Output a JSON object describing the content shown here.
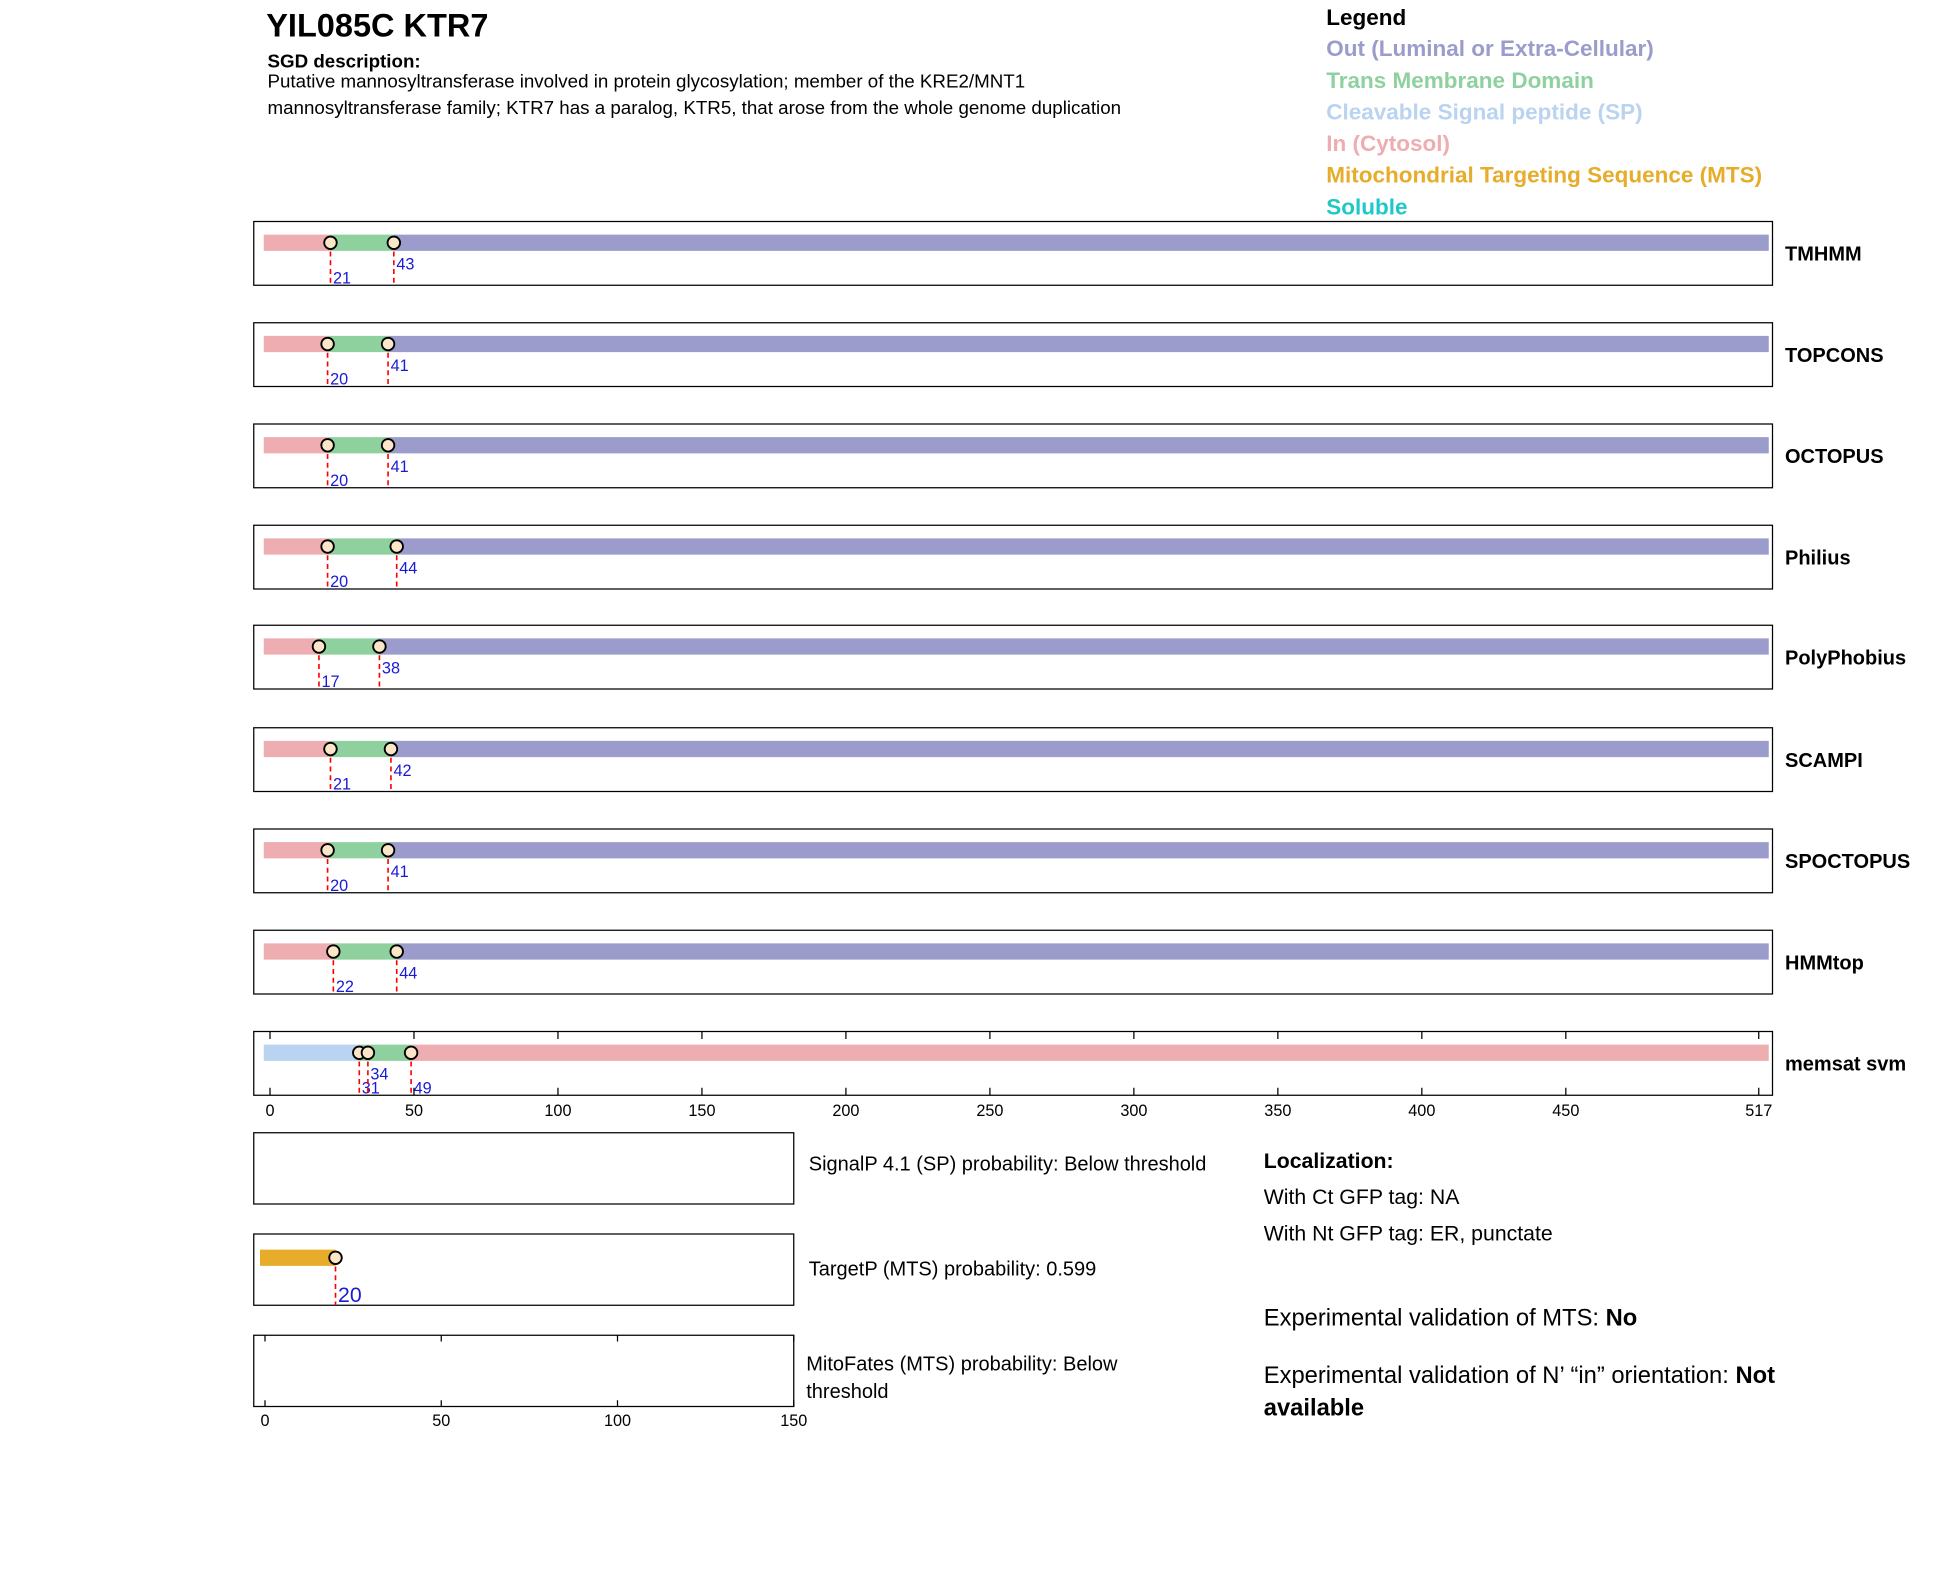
{
  "header": {
    "title": "YIL085C  KTR7",
    "description_label": "SGD description:",
    "description_lines": [
      "Putative mannosyltransferase involved in protein glycosylation; member of the KRE2/MNT1",
      "mannosyltransferase family; KTR7 has a paralog, KTR5, that arose from the whole genome duplication"
    ]
  },
  "legend": {
    "title": "Legend",
    "items": [
      {
        "label": "Out (Luminal or Extra-Cellular)",
        "color": "#9b9bcc"
      },
      {
        "label": "Trans Membrane Domain",
        "color": "#8fd19e"
      },
      {
        "label": "Cleavable Signal peptide (SP)",
        "color": "#b9d3f0"
      },
      {
        "label": "In (Cytosol)",
        "color": "#eeadb0"
      },
      {
        "label": "Mitochondrial Targeting Sequence (MTS)",
        "color": "#e6ac2a"
      },
      {
        "label": "Soluble",
        "color": "#1fc8c8"
      }
    ]
  },
  "chart_data": {
    "type": "topology",
    "xlim": [
      0,
      517
    ],
    "xticks": [
      0,
      50,
      100,
      150,
      200,
      250,
      300,
      350,
      400,
      450,
      517
    ],
    "tracks": [
      {
        "name": "TMHMM",
        "boundaries": [
          21,
          43
        ],
        "colors": [
          "#eeadb0",
          "#8fd19e",
          "#9b9bcc"
        ]
      },
      {
        "name": "TOPCONS",
        "boundaries": [
          20,
          41
        ],
        "colors": [
          "#eeadb0",
          "#8fd19e",
          "#9b9bcc"
        ]
      },
      {
        "name": "OCTOPUS",
        "boundaries": [
          20,
          41
        ],
        "colors": [
          "#eeadb0",
          "#8fd19e",
          "#9b9bcc"
        ]
      },
      {
        "name": "Philius",
        "boundaries": [
          20,
          44
        ],
        "colors": [
          "#eeadb0",
          "#8fd19e",
          "#9b9bcc"
        ]
      },
      {
        "name": "PolyPhobius",
        "boundaries": [
          17,
          38
        ],
        "colors": [
          "#eeadb0",
          "#8fd19e",
          "#9b9bcc"
        ]
      },
      {
        "name": "SCAMPI",
        "boundaries": [
          21,
          42
        ],
        "colors": [
          "#eeadb0",
          "#8fd19e",
          "#9b9bcc"
        ]
      },
      {
        "name": "SPOCTOPUS",
        "boundaries": [
          20,
          41
        ],
        "colors": [
          "#eeadb0",
          "#8fd19e",
          "#9b9bcc"
        ]
      },
      {
        "name": "HMMtop",
        "boundaries": [
          22,
          44
        ],
        "colors": [
          "#eeadb0",
          "#8fd19e",
          "#9b9bcc"
        ]
      },
      {
        "name": "memsat svm",
        "boundaries": [
          31,
          34,
          49
        ],
        "colors": [
          "#b9d3f0",
          "#8fd19e",
          "#8fd19e",
          "#eeadb0"
        ]
      }
    ]
  },
  "panels": {
    "xlim": [
      0,
      150
    ],
    "xticks": [
      0,
      50,
      100,
      150
    ],
    "items": [
      {
        "text": "SignalP 4.1 (SP) probability: Below threshold",
        "boundaries": [],
        "colors": []
      },
      {
        "text": "TargetP (MTS) probability: 0.599",
        "boundaries": [
          20
        ],
        "colors": [
          "#e6ac2a"
        ]
      },
      {
        "text": "MitoFates (MTS) probability: Below threshold",
        "boundaries": [],
        "colors": []
      }
    ]
  },
  "localization": {
    "title": "Localization:",
    "ct": "With Ct GFP tag: NA",
    "nt": "With Nt GFP tag: ER, punctate",
    "mts_label": "Experimental validation of MTS: ",
    "mts_value": "No",
    "orientation_label": "Experimental validation of N’ “in” orientation: ",
    "orientation_value": "Not available"
  }
}
